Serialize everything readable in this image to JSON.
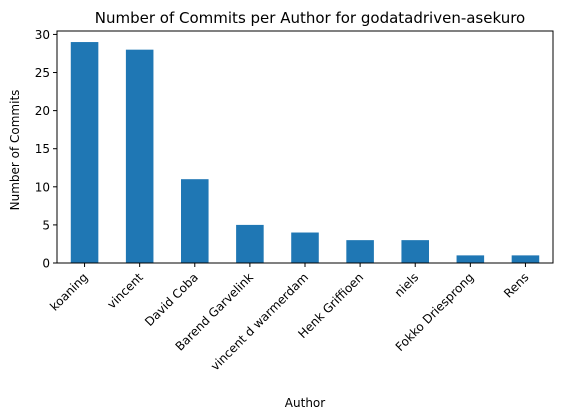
{
  "chart_data": {
    "type": "bar",
    "title": "Number of Commits per Author for godatadriven-asekuro",
    "xlabel": "Author",
    "ylabel": "Number of Commits",
    "categories": [
      "koaning",
      "vincent",
      "David Coba",
      "Barend Garvelink",
      "vincent d warmerdam",
      "Henk Griffioen",
      "niels",
      "Fokko Driesprong",
      "Rens"
    ],
    "values": [
      29,
      28,
      11,
      5,
      4,
      3,
      3,
      1,
      1
    ],
    "ylim": [
      0,
      30.45
    ],
    "yticks": [
      0,
      5,
      10,
      15,
      20,
      25,
      30
    ],
    "grid": false,
    "bar_color": "#1f77b4"
  }
}
